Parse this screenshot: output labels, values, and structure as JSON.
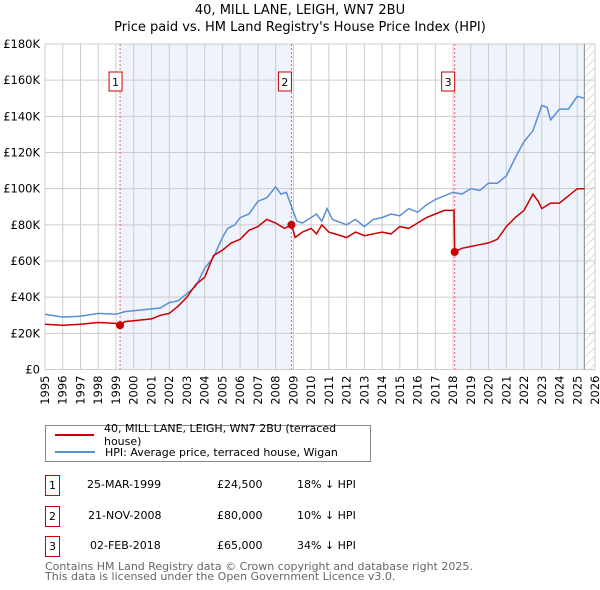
{
  "title": "40, MILL LANE, LEIGH, WN7 2BU",
  "subtitle": "Price paid vs. HM Land Registry's House Price Index (HPI)",
  "chart_data": {
    "type": "line",
    "title": "40, MILL LANE, LEIGH, WN7 2BU",
    "subtitle": "Price paid vs. HM Land Registry's House Price Index (HPI)",
    "xlim": [
      1995,
      2026
    ],
    "ylim": [
      0,
      180000
    ],
    "grid": true,
    "x_ticks": [
      "1995",
      "1996",
      "1997",
      "1998",
      "1999",
      "2000",
      "2001",
      "2002",
      "2003",
      "2004",
      "2005",
      "2006",
      "2007",
      "2008",
      "2009",
      "2010",
      "2011",
      "2012",
      "2013",
      "2014",
      "2015",
      "2016",
      "2017",
      "2018",
      "2019",
      "2020",
      "2021",
      "2022",
      "2023",
      "2024",
      "2025",
      "2026"
    ],
    "y_ticks": [
      {
        "v": 0,
        "label": "£0"
      },
      {
        "v": 20000,
        "label": "£20K"
      },
      {
        "v": 40000,
        "label": "£40K"
      },
      {
        "v": 60000,
        "label": "£60K"
      },
      {
        "v": 80000,
        "label": "£80K"
      },
      {
        "v": 100000,
        "label": "£100K"
      },
      {
        "v": 120000,
        "label": "£120K"
      },
      {
        "v": 140000,
        "label": "£140K"
      },
      {
        "v": 160000,
        "label": "£160K"
      },
      {
        "v": 180000,
        "label": "£180K"
      }
    ],
    "series": [
      {
        "name": "40, MILL LANE, LEIGH, WN7 2BU (terraced house)",
        "color": "#cc0000",
        "x": [
          1995,
          1996,
          1997,
          1998,
          1999,
          1999.23,
          1999.5,
          2000,
          2001,
          2001.5,
          2002,
          2002.5,
          2003,
          2003.5,
          2004,
          2004.5,
          2005,
          2005.5,
          2006,
          2006.5,
          2007,
          2007.5,
          2008,
          2008.5,
          2008.9,
          2009.1,
          2009.5,
          2010,
          2010.3,
          2010.6,
          2011,
          2012,
          2012.5,
          2013,
          2014,
          2014.5,
          2015,
          2015.5,
          2016,
          2016.5,
          2017,
          2017.5,
          2018.05,
          2018.09,
          2018.5,
          2019,
          2019.5,
          2020,
          2020.5,
          2021,
          2021.5,
          2022,
          2022.5,
          2022.8,
          2023,
          2023.5,
          2024,
          2024.5,
          2025,
          2025.4
        ],
        "y": [
          25000,
          24500,
          25000,
          26000,
          25500,
          24500,
          26500,
          27000,
          28000,
          30000,
          31000,
          35000,
          40000,
          47000,
          51000,
          63000,
          66000,
          70000,
          72000,
          77000,
          79000,
          83000,
          81000,
          78000,
          80000,
          73000,
          76000,
          78000,
          75000,
          80000,
          76000,
          73000,
          76000,
          74000,
          76000,
          75000,
          79000,
          78000,
          81000,
          84000,
          86000,
          88000,
          88000,
          65000,
          67000,
          68000,
          69000,
          70000,
          72000,
          79000,
          84000,
          88000,
          97000,
          93000,
          89000,
          92000,
          92000,
          96000,
          100000,
          100000
        ]
      },
      {
        "name": "HPI: Average price, terraced house, Wigan",
        "color": "#5b8fd4",
        "x": [
          1995,
          1996,
          1997,
          1998,
          1999,
          1999.5,
          2000,
          2001,
          2001.5,
          2002,
          2002.5,
          2003,
          2003.5,
          2004,
          2004.5,
          2005,
          2005.3,
          2005.7,
          2006,
          2006.5,
          2007,
          2007.5,
          2008,
          2008.3,
          2008.6,
          2008.9,
          2009.2,
          2009.5,
          2010,
          2010.3,
          2010.6,
          2010.9,
          2011.2,
          2012,
          2012.5,
          2013,
          2013.5,
          2014,
          2014.5,
          2015,
          2015.5,
          2016,
          2016.5,
          2017,
          2017.5,
          2018,
          2018.5,
          2019,
          2019.5,
          2020,
          2020.5,
          2021,
          2021.5,
          2022,
          2022.5,
          2023,
          2023.3,
          2023.5,
          2024,
          2024.5,
          2025,
          2025.4
        ],
        "y": [
          30500,
          29000,
          29500,
          31000,
          30500,
          32000,
          32500,
          33500,
          34000,
          37000,
          38000,
          42000,
          46000,
          56000,
          62000,
          73000,
          78000,
          80000,
          84000,
          86000,
          93000,
          95000,
          101000,
          97000,
          98000,
          90000,
          82000,
          81000,
          84000,
          86000,
          82000,
          89000,
          83000,
          80000,
          83000,
          79000,
          83000,
          84000,
          86000,
          85000,
          89000,
          87000,
          91000,
          94000,
          96000,
          98000,
          97000,
          100000,
          99000,
          103000,
          103000,
          107000,
          117000,
          126000,
          132000,
          146000,
          145000,
          138000,
          144000,
          144000,
          151000,
          150000
        ]
      }
    ],
    "sales": [
      {
        "id": "1",
        "x": 1999.23,
        "y": 24500
      },
      {
        "id": "2",
        "x": 2008.89,
        "y": 80000
      },
      {
        "id": "3",
        "x": 2018.09,
        "y": 65000
      }
    ],
    "shaded_ranges": [
      [
        1999.23,
        2008.89
      ],
      [
        2018.09,
        2025.4
      ]
    ],
    "hatched_after": 2025.4,
    "legend_position": "below"
  },
  "legend": [
    {
      "label": "40, MILL LANE, LEIGH, WN7 2BU (terraced house)",
      "color": "#cc0000"
    },
    {
      "label": "HPI: Average price, terraced house, Wigan",
      "color": "#5b8fd4"
    }
  ],
  "transactions": [
    {
      "num": "1",
      "date": "25-MAR-1999",
      "price": "£24,500",
      "hpi": "18% ↓ HPI"
    },
    {
      "num": "2",
      "date": "21-NOV-2008",
      "price": "£80,000",
      "hpi": "10% ↓ HPI"
    },
    {
      "num": "3",
      "date": "02-FEB-2018",
      "price": "£65,000",
      "hpi": "34% ↓ HPI"
    }
  ],
  "footer": [
    "Contains HM Land Registry data © Crown copyright and database right 2025.",
    "This data is licensed under the Open Government Licence v3.0."
  ]
}
